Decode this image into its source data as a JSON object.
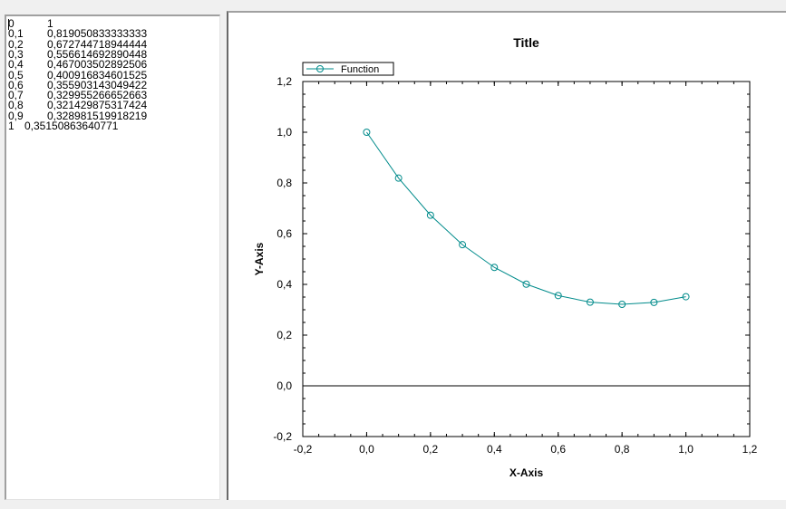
{
  "data_lines": [
    {
      "x": "0",
      "y": "1"
    },
    {
      "x": "0,1",
      "y": "0,819050833333333"
    },
    {
      "x": "0,2",
      "y": "0,672744718944444"
    },
    {
      "x": "0,3",
      "y": "0,556614692890448"
    },
    {
      "x": "0,4",
      "y": "0,467003502892506"
    },
    {
      "x": "0,5",
      "y": "0,400916834601525"
    },
    {
      "x": "0,6",
      "y": "0,355903143049422"
    },
    {
      "x": "0,7",
      "y": "0,329955266652663"
    },
    {
      "x": "0,8",
      "y": "0,321429875317424"
    },
    {
      "x": "0,9",
      "y": "0,328981519918219"
    },
    {
      "x": "1",
      "y": "0,35150863640771"
    }
  ],
  "chart_data": {
    "type": "line",
    "title": "Title",
    "xlabel": "X-Axis",
    "ylabel": "Y-Axis",
    "xlim": [
      -0.2,
      1.2
    ],
    "ylim": [
      -0.2,
      1.2
    ],
    "x_ticks": [
      "-0,2",
      "0,0",
      "0,2",
      "0,4",
      "0,6",
      "0,8",
      "1,0",
      "1,2"
    ],
    "y_ticks": [
      "1,2",
      "1,0",
      "0,8",
      "0,6",
      "0,4",
      "0,2",
      "0,0",
      "-0,2"
    ],
    "legend_position": "top-left",
    "series": [
      {
        "name": "Function",
        "color": "#008b8b",
        "x": [
          0,
          0.1,
          0.2,
          0.3,
          0.4,
          0.5,
          0.6,
          0.7,
          0.8,
          0.9,
          1.0
        ],
        "y": [
          1,
          0.819050833333333,
          0.672744718944444,
          0.556614692890448,
          0.467003502892506,
          0.400916834601525,
          0.355903143049422,
          0.329955266652663,
          0.321429875317424,
          0.328981519918219,
          0.35150863640771
        ]
      }
    ],
    "zero_line_color": "#000000"
  }
}
